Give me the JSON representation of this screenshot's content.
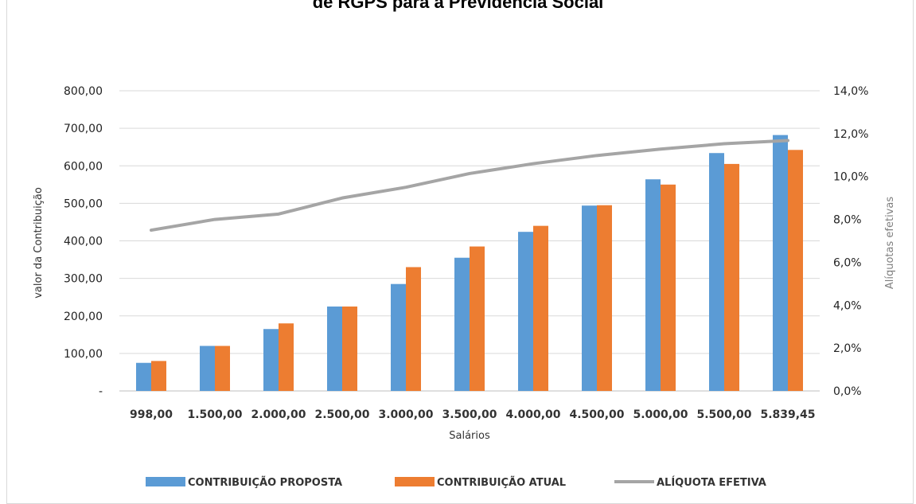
{
  "chart_data": {
    "type": "bar",
    "title": "de RGPS para a Previdência Social",
    "xlabel": "Salários",
    "ylabel": "valor da Contribuição",
    "y2label": "Alíquotas efetivas",
    "categories": [
      "998,00",
      "1.500,00",
      "2.000,00",
      "2.500,00",
      "3.000,00",
      "3.500,00",
      "4.000,00",
      "4.500,00",
      "5.000,00",
      "5.500,00",
      "5.839,45"
    ],
    "ylim": [
      0,
      800
    ],
    "y2lim": [
      0,
      0.14
    ],
    "yticks": [
      {
        "value": 0,
        "label": "-"
      },
      {
        "value": 100,
        "label": "100,00"
      },
      {
        "value": 200,
        "label": "200,00"
      },
      {
        "value": 300,
        "label": "300,00"
      },
      {
        "value": 400,
        "label": "400,00"
      },
      {
        "value": 500,
        "label": "500,00"
      },
      {
        "value": 600,
        "label": "600,00"
      },
      {
        "value": 700,
        "label": "700,00"
      },
      {
        "value": 800,
        "label": "800,00"
      }
    ],
    "y2ticks": [
      {
        "value": 0.0,
        "label": "0,0%"
      },
      {
        "value": 0.02,
        "label": "2,0%"
      },
      {
        "value": 0.04,
        "label": "4,0%"
      },
      {
        "value": 0.06,
        "label": "6,0%"
      },
      {
        "value": 0.08,
        "label": "8,0%"
      },
      {
        "value": 0.1,
        "label": "10,0%"
      },
      {
        "value": 0.12,
        "label": "12,0%"
      },
      {
        "value": 0.14,
        "label": "14,0%"
      }
    ],
    "series": [
      {
        "name": "CONTRIBUIÇÃO PROPOSTA",
        "type": "bar",
        "axis": "left",
        "color": "#5b9bd5",
        "values": [
          74.85,
          120.0,
          165.0,
          225.0,
          285.0,
          355.0,
          424.0,
          494.0,
          564.0,
          634.0,
          682.0
        ]
      },
      {
        "name": "CONTRIBUIÇÃO ATUAL",
        "type": "bar",
        "axis": "left",
        "color": "#ed7d31",
        "values": [
          79.84,
          120.0,
          180.0,
          225.0,
          330.0,
          385.0,
          440.0,
          495.0,
          550.0,
          605.0,
          642.34
        ]
      },
      {
        "name": "ALÍQUOTA EFETIVA",
        "type": "line",
        "axis": "right",
        "color": "#a5a5a5",
        "values": [
          0.075,
          0.08,
          0.0825,
          0.09,
          0.095,
          0.1014,
          0.106,
          0.1098,
          0.1128,
          0.1153,
          0.1168
        ]
      }
    ],
    "legend_position": "bottom",
    "grid": true
  }
}
